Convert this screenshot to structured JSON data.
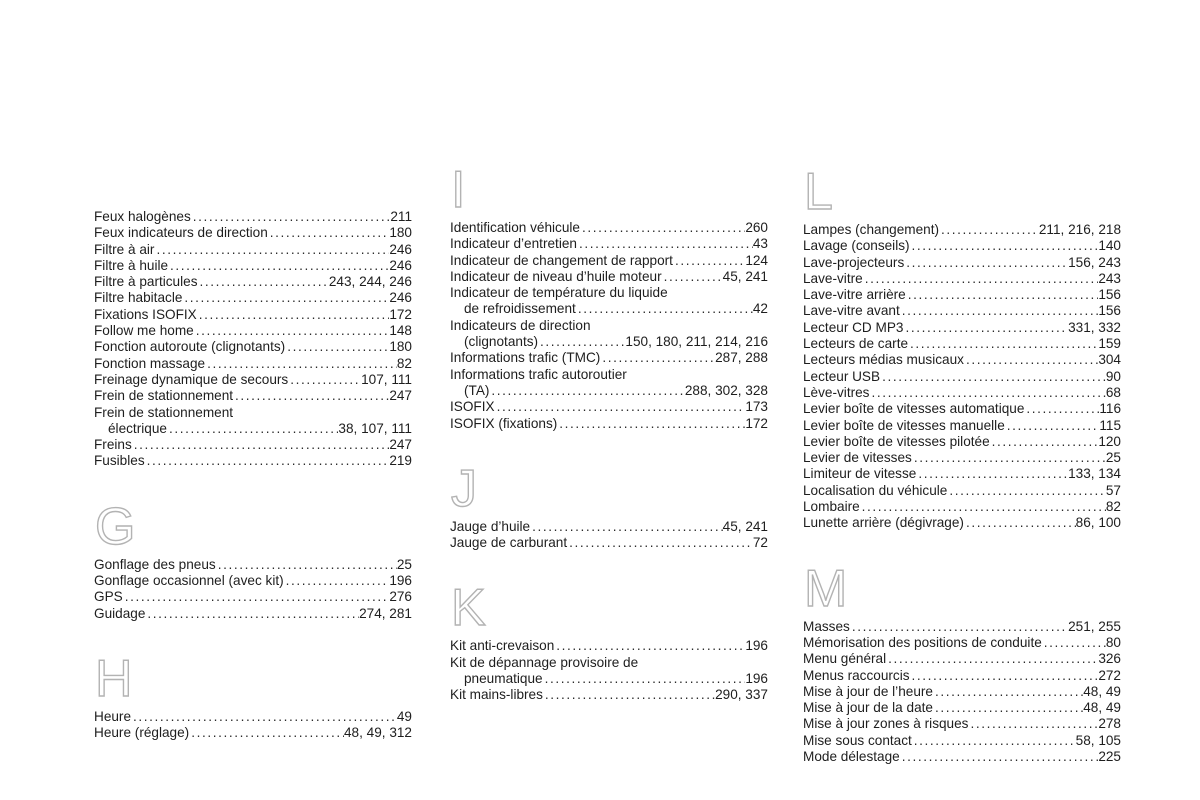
{
  "page": {
    "background": "#ffffff",
    "text_color": "#1e1e1e",
    "letter_outline_color": "#b3b3b3"
  },
  "index": {
    "columns": [
      {
        "sections": [
          {
            "letter": "",
            "entries": [
              {
                "text": "Feux halogènes",
                "pages": "211"
              },
              {
                "text": "Feux indicateurs de direction",
                "pages": "180"
              },
              {
                "text": "Filtre à air",
                "pages": "246"
              },
              {
                "text": "Filtre à huile",
                "pages": "246"
              },
              {
                "text": "Filtre à particules",
                "pages": "243, 244, 246"
              },
              {
                "text": "Filtre habitacle",
                "pages": "246"
              },
              {
                "text": "Fixations ISOFIX",
                "pages": "172"
              },
              {
                "text": "Follow me home",
                "pages": "148"
              },
              {
                "text": "Fonction autoroute (clignotants)",
                "pages": "180"
              },
              {
                "text": "Fonction massage",
                "pages": "82"
              },
              {
                "text": "Freinage dynamique de secours",
                "pages": "107, 111"
              },
              {
                "text": "Frein de stationnement",
                "pages": "247"
              },
              {
                "text": "Frein de stationnement",
                "pages": null
              },
              {
                "text": "électrique",
                "pages": "38, 107, 111",
                "indent": true
              },
              {
                "text": "Freins",
                "pages": "247"
              },
              {
                "text": "Fusibles",
                "pages": "219"
              }
            ]
          },
          {
            "letter": "G",
            "entries": [
              {
                "text": "Gonflage des pneus",
                "pages": "25"
              },
              {
                "text": "Gonflage occasionnel (avec kit)",
                "pages": "196"
              },
              {
                "text": "GPS",
                "pages": "276"
              },
              {
                "text": "Guidage",
                "pages": "274, 281"
              }
            ]
          },
          {
            "letter": "H",
            "entries": [
              {
                "text": "Heure",
                "pages": "49"
              },
              {
                "text": "Heure (réglage)",
                "pages": "48, 49, 312"
              }
            ]
          }
        ]
      },
      {
        "sections": [
          {
            "letter": "I",
            "entries": [
              {
                "text": "Identification véhicule",
                "pages": "260"
              },
              {
                "text": "Indicateur d’entretien",
                "pages": "43"
              },
              {
                "text": "Indicateur de changement de rapport",
                "pages": "124"
              },
              {
                "text": "Indicateur de niveau d’huile moteur",
                "pages": "45, 241"
              },
              {
                "text": "Indicateur de température du liquide",
                "pages": null
              },
              {
                "text": "de refroidissement",
                "pages": "42",
                "indent": true
              },
              {
                "text": "Indicateurs de direction",
                "pages": null
              },
              {
                "text": "(clignotants)",
                "pages": "150, 180, 211, 214, 216",
                "indent": true
              },
              {
                "text": "Informations trafic (TMC)",
                "pages": "287, 288"
              },
              {
                "text": "Informations trafic autoroutier",
                "pages": null
              },
              {
                "text": "(TA)",
                "pages": "288, 302, 328",
                "indent": true
              },
              {
                "text": "ISOFIX",
                "pages": "173"
              },
              {
                "text": "ISOFIX (fixations)",
                "pages": "172"
              }
            ]
          },
          {
            "letter": "J",
            "entries": [
              {
                "text": "Jauge d’huile",
                "pages": "45, 241"
              },
              {
                "text": "Jauge de carburant",
                "pages": "72"
              }
            ]
          },
          {
            "letter": "K",
            "entries": [
              {
                "text": "Kit anti-crevaison",
                "pages": "196"
              },
              {
                "text": "Kit de dépannage provisoire de",
                "pages": null
              },
              {
                "text": "pneumatique",
                "pages": "196",
                "indent": true
              },
              {
                "text": "Kit mains-libres",
                "pages": "290, 337"
              }
            ]
          }
        ]
      },
      {
        "sections": [
          {
            "letter": "L",
            "entries": [
              {
                "text": "Lampes (changement)",
                "pages": "211, 216, 218"
              },
              {
                "text": "Lavage (conseils)",
                "pages": "140"
              },
              {
                "text": "Lave-projecteurs",
                "pages": "156, 243"
              },
              {
                "text": "Lave-vitre",
                "pages": "243"
              },
              {
                "text": "Lave-vitre arrière",
                "pages": "156"
              },
              {
                "text": "Lave-vitre avant",
                "pages": "156"
              },
              {
                "text": "Lecteur CD MP3",
                "pages": "331, 332"
              },
              {
                "text": "Lecteurs de carte",
                "pages": "159"
              },
              {
                "text": "Lecteurs médias musicaux",
                "pages": "304"
              },
              {
                "text": "Lecteur USB",
                "pages": "90"
              },
              {
                "text": "Lève-vitres",
                "pages": "68"
              },
              {
                "text": "Levier boîte de vitesses automatique",
                "pages": "116"
              },
              {
                "text": "Levier boîte de vitesses manuelle",
                "pages": "115"
              },
              {
                "text": "Levier boîte de vitesses pilotée",
                "pages": "120"
              },
              {
                "text": "Levier de vitesses",
                "pages": "25"
              },
              {
                "text": "Limiteur de vitesse",
                "pages": "133, 134"
              },
              {
                "text": "Localisation du véhicule",
                "pages": "57"
              },
              {
                "text": "Lombaire",
                "pages": "82"
              },
              {
                "text": "Lunette arrière (dégivrage)",
                "pages": "86, 100"
              }
            ]
          },
          {
            "letter": "M",
            "entries": [
              {
                "text": "Masses",
                "pages": "251, 255"
              },
              {
                "text": "Mémorisation des positions de conduite",
                "pages": "80"
              },
              {
                "text": "Menu général",
                "pages": "326"
              },
              {
                "text": "Menus raccourcis",
                "pages": "272"
              },
              {
                "text": "Mise à jour de l’heure",
                "pages": "48, 49"
              },
              {
                "text": "Mise à jour de la date",
                "pages": "48, 49"
              },
              {
                "text": "Mise à jour zones à risques",
                "pages": "278"
              },
              {
                "text": "Mise sous contact",
                "pages": "58, 105"
              },
              {
                "text": "Mode délestage",
                "pages": "225"
              }
            ]
          }
        ]
      }
    ]
  }
}
